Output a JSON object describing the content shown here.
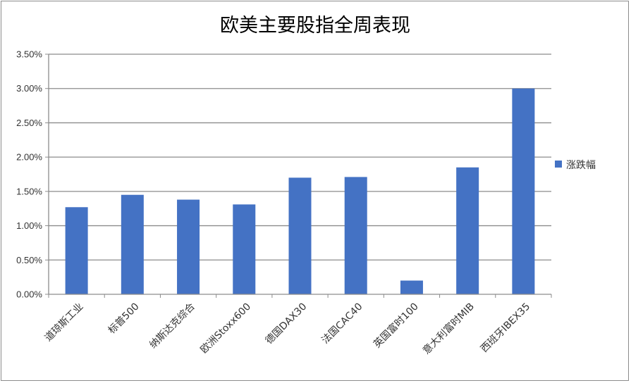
{
  "chart_data": {
    "type": "bar",
    "title": "欧美主要股指全周表现",
    "categories": [
      "道琼斯工业",
      "标普500",
      "纳斯达克综合",
      "欧洲Stoxx600",
      "德国DAX30",
      "法国CAC40",
      "英国富时100",
      "意大利富时MIB",
      "西班牙IBEX35"
    ],
    "series": [
      {
        "name": "涨跌幅",
        "values": [
          1.27,
          1.45,
          1.38,
          1.31,
          1.7,
          1.71,
          0.2,
          1.85,
          3.0
        ],
        "color": "#4472c4"
      }
    ],
    "yticks": [
      "0.00%",
      "0.50%",
      "1.00%",
      "1.50%",
      "2.00%",
      "2.50%",
      "3.00%",
      "3.50%"
    ],
    "ylim": [
      0,
      3.5
    ],
    "grid": true,
    "legend_position": "right"
  }
}
